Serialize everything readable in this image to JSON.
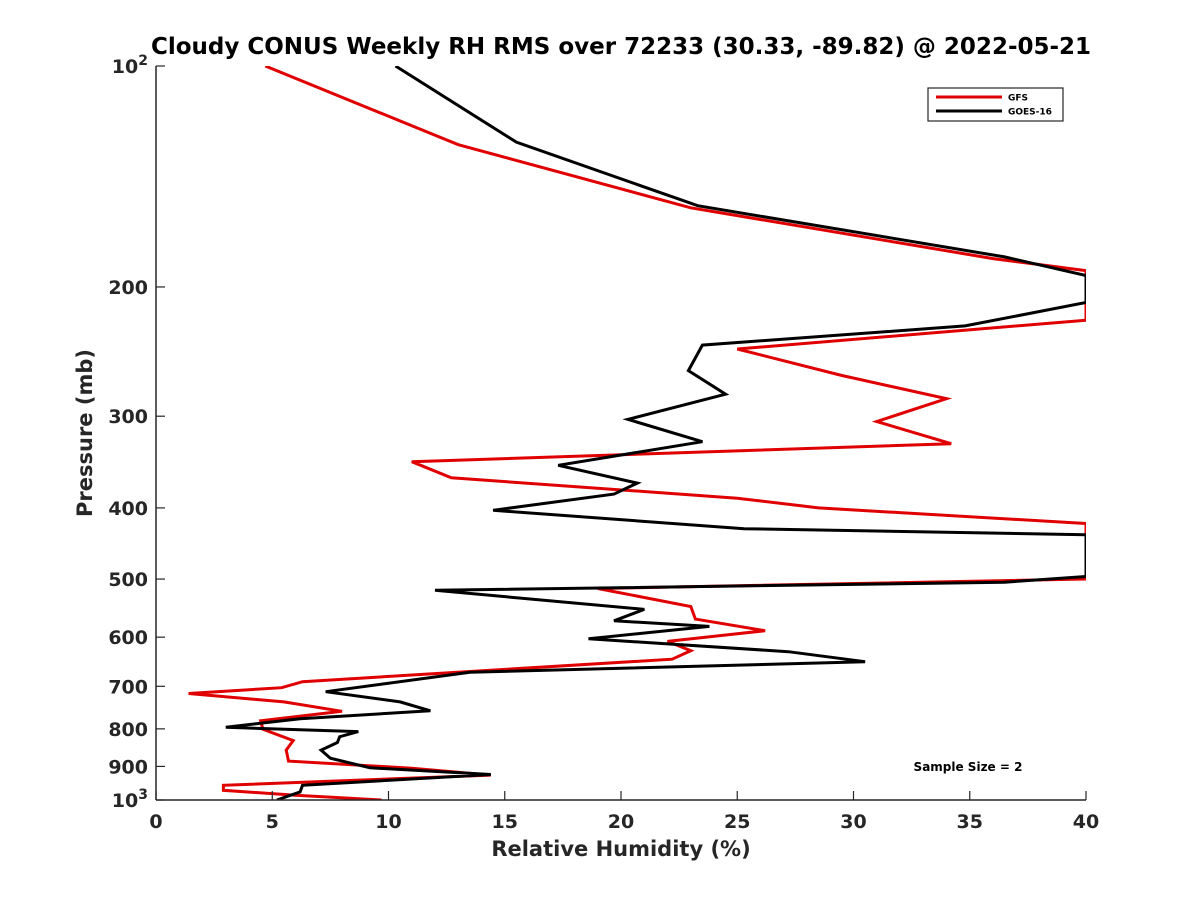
{
  "chart_data": {
    "type": "line",
    "title": "Cloudy CONUS Weekly RH RMS over 72233 (30.33, -89.82) @ 2022-05-21",
    "xlabel": "Relative Humidity (%)",
    "ylabel": "Pressure (mb)",
    "xlim": [
      0,
      40
    ],
    "ylim": [
      1000,
      100
    ],
    "yscale": "log",
    "x_ticks": [
      {
        "value": 0,
        "label": "0"
      },
      {
        "value": 5,
        "label": "5"
      },
      {
        "value": 10,
        "label": "10"
      },
      {
        "value": 15,
        "label": "15"
      },
      {
        "value": 20,
        "label": "20"
      },
      {
        "value": 25,
        "label": "25"
      },
      {
        "value": 30,
        "label": "30"
      },
      {
        "value": 35,
        "label": "35"
      },
      {
        "value": 40,
        "label": "40"
      }
    ],
    "y_ticks": [
      {
        "value": 100,
        "label": "10",
        "exp": "2"
      },
      {
        "value": 200,
        "label": "200"
      },
      {
        "value": 300,
        "label": "300"
      },
      {
        "value": 400,
        "label": "400"
      },
      {
        "value": 500,
        "label": "500"
      },
      {
        "value": 600,
        "label": "600"
      },
      {
        "value": 700,
        "label": "700"
      },
      {
        "value": 800,
        "label": "800"
      },
      {
        "value": 900,
        "label": "900"
      },
      {
        "value": 1000,
        "label": "10",
        "exp": "3"
      }
    ],
    "legend_position": "top-right",
    "annotation": "Sample Size = 2",
    "series": [
      {
        "name": "GFS",
        "color": "#e00000",
        "points": [
          [
            4.7,
            100
          ],
          [
            13.0,
            128
          ],
          [
            23.0,
            156
          ],
          [
            36.0,
            183
          ],
          [
            40.0,
            190
          ],
          [
            40.0,
            222
          ],
          [
            25.0,
            243
          ],
          [
            29.5,
            264
          ],
          [
            34.0,
            284
          ],
          [
            31.0,
            305
          ],
          [
            34.2,
            327
          ],
          [
            11.0,
            346
          ],
          [
            12.7,
            364
          ],
          [
            25.0,
            388
          ],
          [
            28.5,
            400
          ],
          [
            40.0,
            420
          ],
          [
            40.0,
            500
          ],
          [
            19.0,
            515
          ],
          [
            23.0,
            545
          ],
          [
            23.2,
            567
          ],
          [
            26.2,
            588
          ],
          [
            22.0,
            608
          ],
          [
            23.0,
            626
          ],
          [
            22.2,
            643
          ],
          [
            6.3,
            690
          ],
          [
            5.4,
            703
          ],
          [
            1.4,
            716
          ],
          [
            5.5,
            735
          ],
          [
            8.0,
            757
          ],
          [
            4.5,
            780
          ],
          [
            4.6,
            801
          ],
          [
            5.9,
            830
          ],
          [
            5.6,
            855
          ],
          [
            5.7,
            885
          ],
          [
            11.0,
            905
          ],
          [
            14.4,
            925
          ],
          [
            2.9,
            955
          ],
          [
            2.9,
            970
          ],
          [
            6.0,
            985
          ],
          [
            9.7,
            1000
          ]
        ]
      },
      {
        "name": "GOES-16",
        "color": "#000000",
        "points": [
          [
            10.3,
            100
          ],
          [
            15.5,
            127
          ],
          [
            23.3,
            155
          ],
          [
            36.5,
            182
          ],
          [
            40.0,
            193
          ],
          [
            40.0,
            210
          ],
          [
            34.8,
            226
          ],
          [
            23.5,
            240
          ],
          [
            22.9,
            260
          ],
          [
            24.5,
            280
          ],
          [
            20.3,
            303
          ],
          [
            23.5,
            325
          ],
          [
            17.3,
            350
          ],
          [
            20.7,
            370
          ],
          [
            19.7,
            383
          ],
          [
            14.5,
            403
          ],
          [
            25.3,
            427
          ],
          [
            40.0,
            435
          ],
          [
            40.0,
            496
          ],
          [
            36.5,
            505
          ],
          [
            12.0,
            518
          ],
          [
            21.0,
            550
          ],
          [
            19.7,
            570
          ],
          [
            23.8,
            580
          ],
          [
            18.6,
            603
          ],
          [
            27.2,
            628
          ],
          [
            30.5,
            648
          ],
          [
            13.5,
            670
          ],
          [
            7.3,
            712
          ],
          [
            10.5,
            735
          ],
          [
            11.8,
            756
          ],
          [
            6.2,
            775
          ],
          [
            3.0,
            796
          ],
          [
            8.7,
            807
          ],
          [
            7.9,
            820
          ],
          [
            7.8,
            835
          ],
          [
            7.1,
            855
          ],
          [
            7.5,
            877
          ],
          [
            9.2,
            904
          ],
          [
            14.4,
            923
          ],
          [
            6.3,
            955
          ],
          [
            6.2,
            975
          ],
          [
            5.2,
            1000
          ]
        ]
      }
    ]
  }
}
